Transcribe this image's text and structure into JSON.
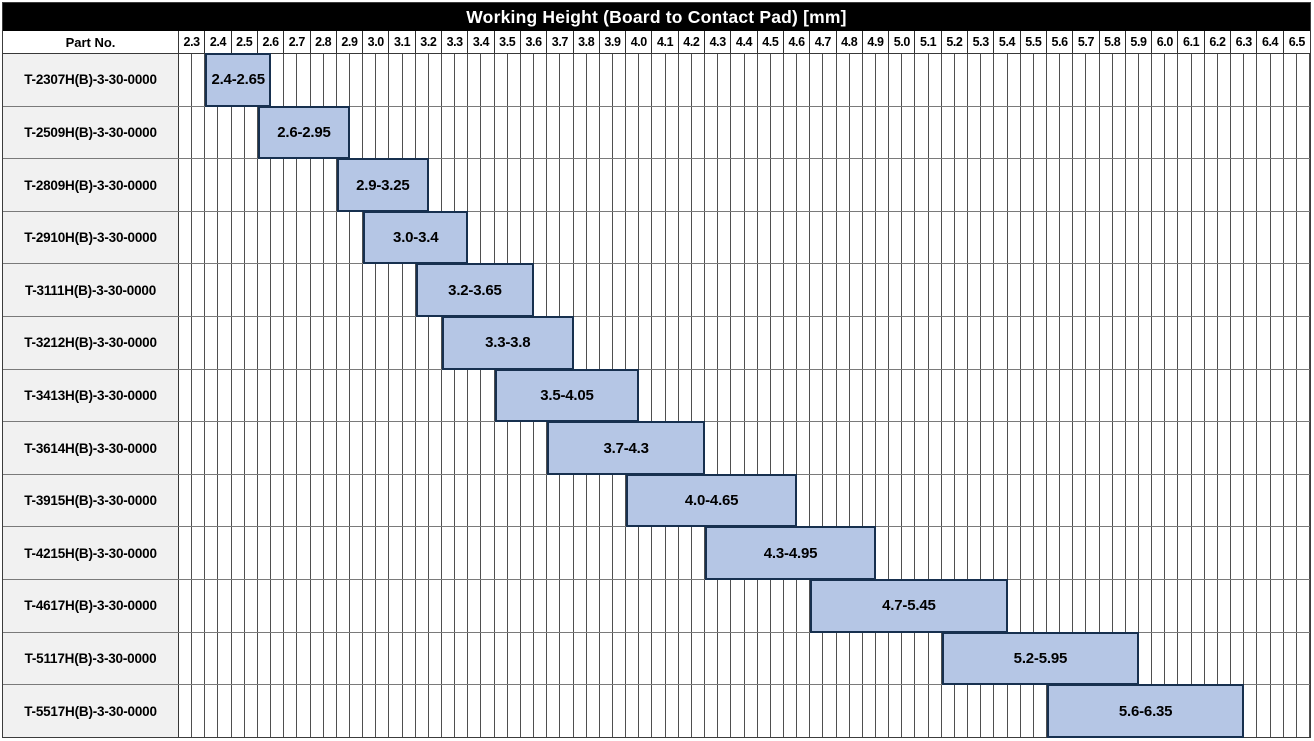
{
  "table": {
    "part_no_header": "Part No."
  },
  "colors": {
    "title_bg": "#000000",
    "title_text": "#ffffff",
    "header_bg": "#ffffff",
    "part_col_bg": "#f1f1f1",
    "bar_fill": "#b5c6e5",
    "bar_border": "#17304f",
    "grid_line": "#4f4f4f",
    "row_line": "#7a7a7a",
    "outer_border": "#3c3c3c"
  },
  "chart_data": {
    "type": "bar",
    "subtype": "horizontal-range-gantt",
    "title": "Working Height (Board to Contact Pad) [mm]",
    "xlabel": "",
    "ylabel": "",
    "legend": "none",
    "grid": "on",
    "x_axis": {
      "min": 2.3,
      "max": 6.6,
      "tick_step": 0.1,
      "subcell_step": 0.05,
      "tick_labels": [
        "2.3",
        "2.4",
        "2.5",
        "2.6",
        "2.7",
        "2.8",
        "2.9",
        "3.0",
        "3.1",
        "3.2",
        "3.3",
        "3.4",
        "3.5",
        "3.6",
        "3.7",
        "3.8",
        "3.9",
        "4.0",
        "4.1",
        "4.2",
        "4.3",
        "4.4",
        "4.5",
        "4.6",
        "4.7",
        "4.8",
        "4.9",
        "5.0",
        "5.1",
        "5.2",
        "5.3",
        "5.4",
        "5.5",
        "5.6",
        "5.7",
        "5.8",
        "5.9",
        "6.0",
        "6.1",
        "6.2",
        "6.3",
        "6.4",
        "6.5"
      ]
    },
    "rows": [
      {
        "part_no": "T-2307H(B)-3-30-0000",
        "range_label": "2.4-2.65",
        "start": 2.4,
        "end": 2.65
      },
      {
        "part_no": "T-2509H(B)-3-30-0000",
        "range_label": "2.6-2.95",
        "start": 2.6,
        "end": 2.95
      },
      {
        "part_no": "T-2809H(B)-3-30-0000",
        "range_label": "2.9-3.25",
        "start": 2.9,
        "end": 3.25
      },
      {
        "part_no": "T-2910H(B)-3-30-0000",
        "range_label": "3.0-3.4",
        "start": 3.0,
        "end": 3.4
      },
      {
        "part_no": "T-3111H(B)-3-30-0000",
        "range_label": "3.2-3.65",
        "start": 3.2,
        "end": 3.65
      },
      {
        "part_no": "T-3212H(B)-3-30-0000",
        "range_label": "3.3-3.8",
        "start": 3.3,
        "end": 3.8
      },
      {
        "part_no": "T-3413H(B)-3-30-0000",
        "range_label": "3.5-4.05",
        "start": 3.5,
        "end": 4.05
      },
      {
        "part_no": "T-3614H(B)-3-30-0000",
        "range_label": "3.7-4.3",
        "start": 3.7,
        "end": 4.3
      },
      {
        "part_no": "T-3915H(B)-3-30-0000",
        "range_label": "4.0-4.65",
        "start": 4.0,
        "end": 4.65
      },
      {
        "part_no": "T-4215H(B)-3-30-0000",
        "range_label": "4.3-4.95",
        "start": 4.3,
        "end": 4.95
      },
      {
        "part_no": "T-4617H(B)-3-30-0000",
        "range_label": "4.7-5.45",
        "start": 4.7,
        "end": 5.45
      },
      {
        "part_no": "T-5117H(B)-3-30-0000",
        "range_label": "5.2-5.95",
        "start": 5.2,
        "end": 5.95
      },
      {
        "part_no": "T-5517H(B)-3-30-0000",
        "range_label": "5.6-6.35",
        "start": 5.6,
        "end": 6.35
      }
    ]
  }
}
